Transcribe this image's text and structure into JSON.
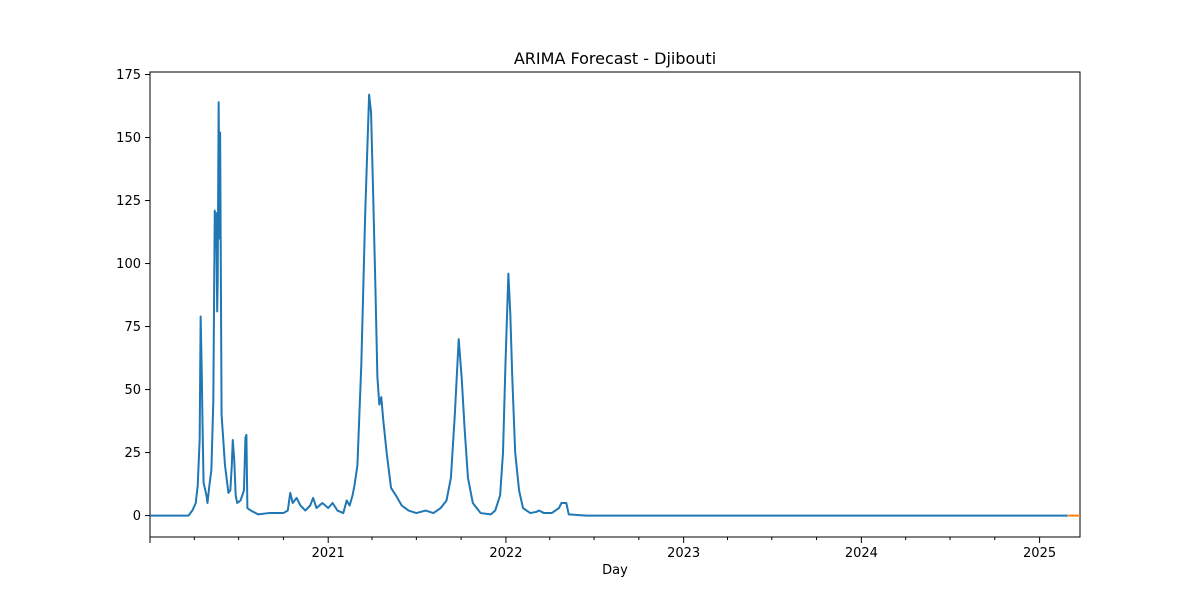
{
  "chart_data": {
    "type": "line",
    "title": "ARIMA Forecast - Djibouti",
    "xlabel": "Day",
    "ylabel": "",
    "x_range": [
      "2020-01-01",
      "2025-03-25"
    ],
    "ylim": [
      -8.5,
      176
    ],
    "y_ticks": [
      0,
      25,
      50,
      75,
      100,
      125,
      150,
      175
    ],
    "x_ticks": [
      {
        "date": "2021-01-01",
        "label": "2021"
      },
      {
        "date": "2022-01-01",
        "label": "2022"
      },
      {
        "date": "2023-01-01",
        "label": "2023"
      },
      {
        "date": "2024-01-01",
        "label": "2024"
      },
      {
        "date": "2025-01-01",
        "label": "2025"
      }
    ],
    "grid": false,
    "legend": "none",
    "series": [
      {
        "color": "#1f77b4",
        "points": [
          [
            "2020-01-01",
            0
          ],
          [
            "2020-03-20",
            0
          ],
          [
            "2020-03-28",
            2
          ],
          [
            "2020-04-04",
            5
          ],
          [
            "2020-04-08",
            12
          ],
          [
            "2020-04-12",
            30
          ],
          [
            "2020-04-14",
            79
          ],
          [
            "2020-04-16",
            60
          ],
          [
            "2020-04-18",
            35
          ],
          [
            "2020-04-20",
            13
          ],
          [
            "2020-04-26",
            8
          ],
          [
            "2020-04-28",
            5
          ],
          [
            "2020-05-02",
            12
          ],
          [
            "2020-05-06",
            18
          ],
          [
            "2020-05-10",
            45
          ],
          [
            "2020-05-13",
            121
          ],
          [
            "2020-05-14",
            106
          ],
          [
            "2020-05-16",
            120
          ],
          [
            "2020-05-18",
            81
          ],
          [
            "2020-05-19",
            93
          ],
          [
            "2020-05-21",
            164
          ],
          [
            "2020-05-23",
            110
          ],
          [
            "2020-05-24",
            152
          ],
          [
            "2020-05-27",
            40
          ],
          [
            "2020-06-03",
            20
          ],
          [
            "2020-06-10",
            9
          ],
          [
            "2020-06-14",
            10
          ],
          [
            "2020-06-17",
            20
          ],
          [
            "2020-06-19",
            30
          ],
          [
            "2020-06-22",
            22
          ],
          [
            "2020-06-25",
            8
          ],
          [
            "2020-06-28",
            5
          ],
          [
            "2020-07-05",
            6
          ],
          [
            "2020-07-12",
            10
          ],
          [
            "2020-07-15",
            31
          ],
          [
            "2020-07-17",
            32
          ],
          [
            "2020-07-19",
            3
          ],
          [
            "2020-07-26",
            2
          ],
          [
            "2020-08-10",
            0.5
          ],
          [
            "2020-09-01",
            1
          ],
          [
            "2020-10-01",
            1
          ],
          [
            "2020-10-10",
            2
          ],
          [
            "2020-10-15",
            9
          ],
          [
            "2020-10-20",
            5
          ],
          [
            "2020-10-28",
            7
          ],
          [
            "2020-11-05",
            4
          ],
          [
            "2020-11-15",
            2
          ],
          [
            "2020-11-25",
            4
          ],
          [
            "2020-12-01",
            7
          ],
          [
            "2020-12-08",
            3
          ],
          [
            "2020-12-20",
            5
          ],
          [
            "2021-01-01",
            3
          ],
          [
            "2021-01-10",
            5
          ],
          [
            "2021-01-20",
            2
          ],
          [
            "2021-02-01",
            1
          ],
          [
            "2021-02-08",
            6
          ],
          [
            "2021-02-14",
            4
          ],
          [
            "2021-02-20",
            8
          ],
          [
            "2021-02-24",
            12
          ],
          [
            "2021-03-02",
            20
          ],
          [
            "2021-03-10",
            60
          ],
          [
            "2021-03-18",
            120
          ],
          [
            "2021-03-26",
            167
          ],
          [
            "2021-03-30",
            160
          ],
          [
            "2021-04-03",
            130
          ],
          [
            "2021-04-08",
            90
          ],
          [
            "2021-04-12",
            55
          ],
          [
            "2021-04-16",
            44
          ],
          [
            "2021-04-20",
            47
          ],
          [
            "2021-04-24",
            38
          ],
          [
            "2021-05-01",
            25
          ],
          [
            "2021-05-10",
            11
          ],
          [
            "2021-05-20",
            8
          ],
          [
            "2021-06-01",
            4
          ],
          [
            "2021-06-15",
            2
          ],
          [
            "2021-07-01",
            1
          ],
          [
            "2021-07-20",
            2
          ],
          [
            "2021-08-05",
            1
          ],
          [
            "2021-08-20",
            3
          ],
          [
            "2021-09-01",
            6
          ],
          [
            "2021-09-10",
            15
          ],
          [
            "2021-09-18",
            40
          ],
          [
            "2021-09-26",
            70
          ],
          [
            "2021-10-02",
            55
          ],
          [
            "2021-10-08",
            35
          ],
          [
            "2021-10-15",
            15
          ],
          [
            "2021-10-25",
            5
          ],
          [
            "2021-11-10",
            1
          ],
          [
            "2021-12-01",
            0.5
          ],
          [
            "2021-12-10",
            2
          ],
          [
            "2021-12-20",
            8
          ],
          [
            "2021-12-26",
            25
          ],
          [
            "2021-12-31",
            60
          ],
          [
            "2022-01-06",
            96
          ],
          [
            "2022-01-10",
            80
          ],
          [
            "2022-01-14",
            55
          ],
          [
            "2022-01-20",
            25
          ],
          [
            "2022-01-28",
            10
          ],
          [
            "2022-02-05",
            3
          ],
          [
            "2022-02-20",
            1
          ],
          [
            "2022-03-05",
            1.5
          ],
          [
            "2022-03-10",
            2
          ],
          [
            "2022-03-20",
            1
          ],
          [
            "2022-04-05",
            1
          ],
          [
            "2022-04-20",
            3
          ],
          [
            "2022-04-25",
            5
          ],
          [
            "2022-05-05",
            5
          ],
          [
            "2022-05-10",
            0.5
          ],
          [
            "2022-06-15",
            0
          ],
          [
            "2025-02-28",
            0
          ]
        ]
      },
      {
        "color": "#ff7f0e",
        "points": [
          [
            "2025-03-01",
            0
          ],
          [
            "2025-03-25",
            0
          ]
        ]
      }
    ]
  }
}
